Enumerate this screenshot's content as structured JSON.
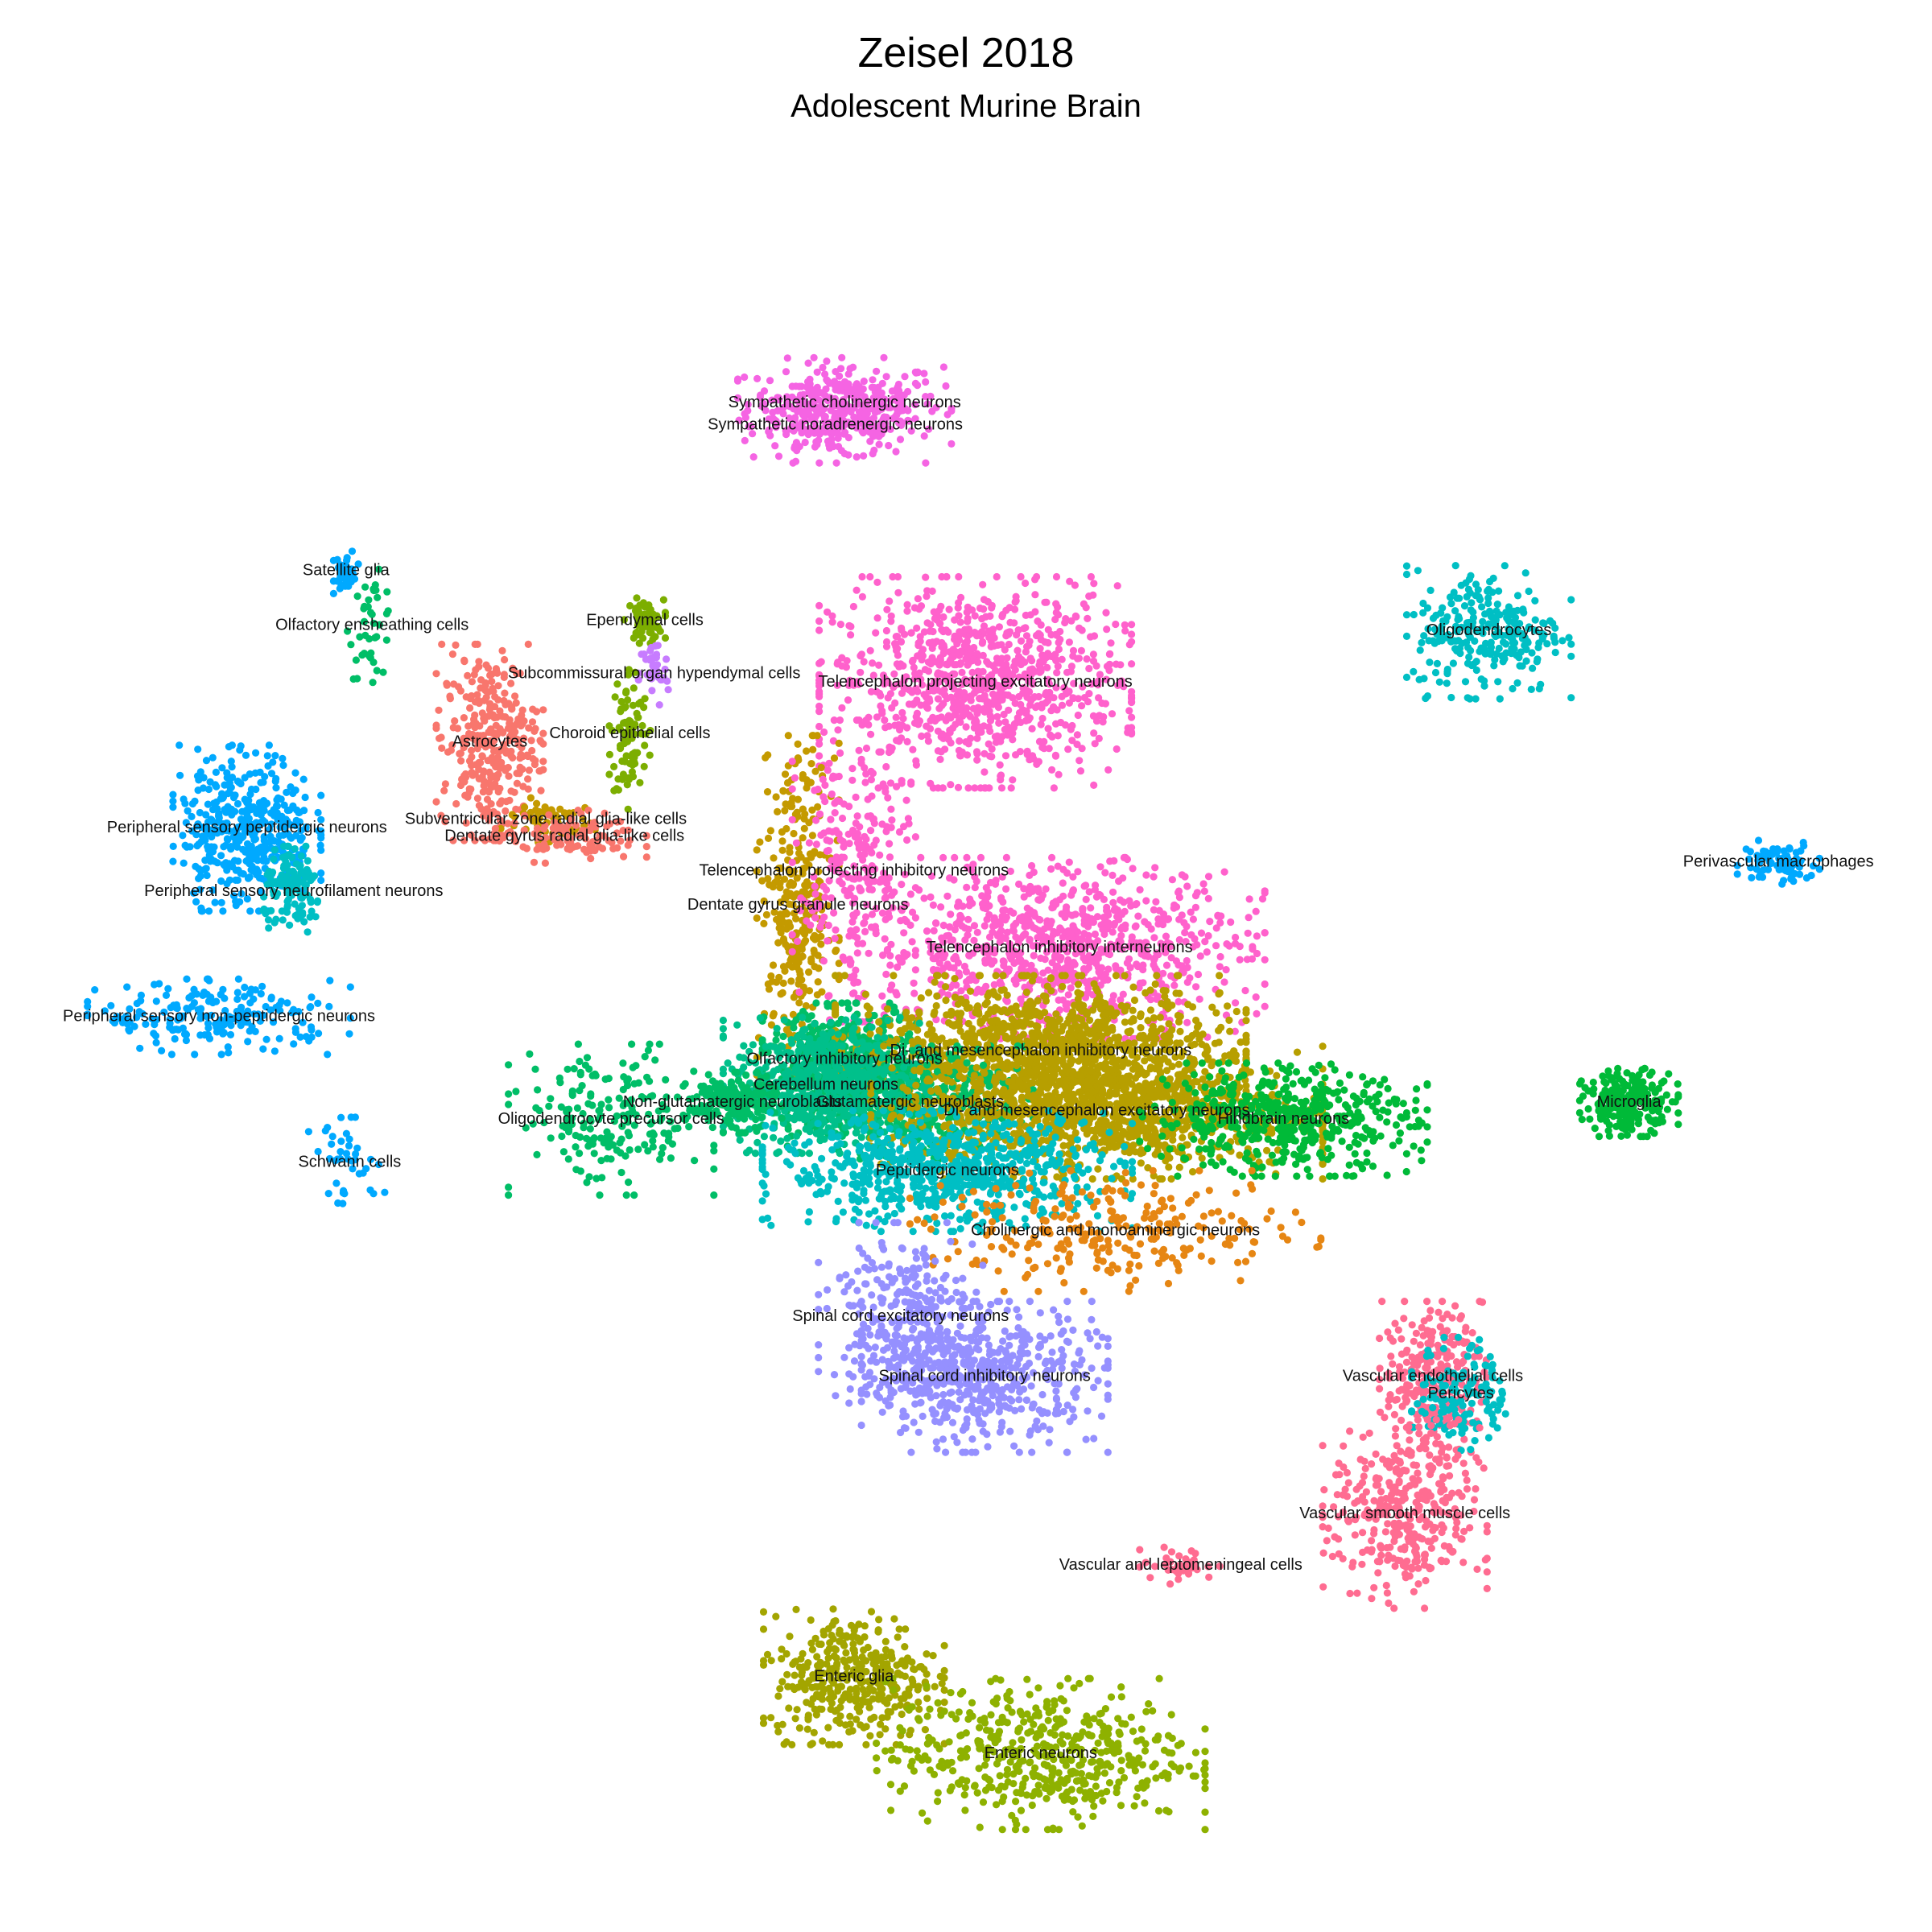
{
  "chart_data": {
    "type": "scatter",
    "title": "Zeisel 2018",
    "subtitle": "Adolescent Murine Brain",
    "xlabel": "",
    "ylabel": "",
    "grid": false,
    "legend": "none",
    "xlim": [
      0,
      100
    ],
    "ylim": [
      0,
      100
    ],
    "series": [
      {
        "name": "Sympathetic cholinergic neurons",
        "color": "#F564E3",
        "x": 43.5,
        "y": 87.3,
        "sx": 2.6,
        "sy": 1.2,
        "n": 260
      },
      {
        "name": "Sympathetic noradrenergic neurons",
        "color": "#F564E3",
        "x": 43.0,
        "y": 86.0,
        "sx": 2.2,
        "sy": 1.0,
        "n": 180
      },
      {
        "name": "Satellite glia",
        "color": "#00A9FF",
        "x": 16.8,
        "y": 77.5,
        "sx": 0.3,
        "sy": 0.6,
        "n": 40
      },
      {
        "name": "Olfactory ensheathing cells",
        "color": "#00BE67",
        "x": 18.2,
        "y": 74.3,
        "sx": 0.6,
        "sy": 1.5,
        "n": 40
      },
      {
        "name": "Ependymal cells",
        "color": "#7CAE00",
        "x": 32.8,
        "y": 74.6,
        "sx": 0.5,
        "sy": 0.6,
        "n": 60
      },
      {
        "name": "Subcommissural organ hypendymal cells",
        "color": "#C77CFF",
        "x": 33.3,
        "y": 71.5,
        "sx": 0.4,
        "sy": 1.0,
        "n": 40
      },
      {
        "name": "Choroid epithelial cells",
        "color": "#7CAE00",
        "x": 32.0,
        "y": 68.0,
        "sx": 0.5,
        "sy": 2.0,
        "n": 90
      },
      {
        "name": "Telencephalon projecting excitatory neurons",
        "color": "#FF61CC",
        "x": 50.5,
        "y": 71.0,
        "sx": 3.8,
        "sy": 2.8,
        "n": 900
      },
      {
        "name": "Oligodendrocytes",
        "color": "#00BFC4",
        "x": 78.0,
        "y": 74.0,
        "sx": 2.0,
        "sy": 1.8,
        "n": 260
      },
      {
        "name": "Astrocytes",
        "color": "#F8766D",
        "x": 24.5,
        "y": 67.5,
        "sx": 1.3,
        "sy": 2.6,
        "n": 320
      },
      {
        "name": "Subventricular zone radial glia-like cells",
        "color": "#C49A00",
        "x": 27.5,
        "y": 63.0,
        "sx": 1.2,
        "sy": 0.6,
        "n": 60
      },
      {
        "name": "Dentate gyrus radial glia-like cells",
        "color": "#F8766D",
        "x": 28.5,
        "y": 62.0,
        "sx": 2.0,
        "sy": 0.7,
        "n": 120
      },
      {
        "name": "Peripheral sensory peptidergic neurons",
        "color": "#00A9FF",
        "x": 11.5,
        "y": 62.5,
        "sx": 1.8,
        "sy": 2.2,
        "n": 420
      },
      {
        "name": "Peripheral sensory neurofilament neurons",
        "color": "#00BFC4",
        "x": 14.0,
        "y": 58.8,
        "sx": 0.8,
        "sy": 1.2,
        "n": 120
      },
      {
        "name": "Perivascular macrophages",
        "color": "#00A9FF",
        "x": 93.5,
        "y": 60.5,
        "sx": 1.0,
        "sy": 0.6,
        "n": 80
      },
      {
        "name": "Dentate gyrus granule neurons",
        "color": "#C49A00",
        "x": 41.0,
        "y": 58.0,
        "sx": 1.0,
        "sy": 4.5,
        "n": 320
      },
      {
        "name": "Telencephalon projecting inhibitory neurons",
        "color": "#FF61CC",
        "x": 44.0,
        "y": 60.0,
        "sx": 1.5,
        "sy": 4.0,
        "n": 260
      },
      {
        "name": "Telencephalon inhibitory interneurons",
        "color": "#FF61CC",
        "x": 55.0,
        "y": 55.5,
        "sx": 5.0,
        "sy": 2.4,
        "n": 900
      },
      {
        "name": "Peripheral sensory non-peptidergic neurons",
        "color": "#00A9FF",
        "x": 10.0,
        "y": 51.5,
        "sx": 3.2,
        "sy": 1.0,
        "n": 200
      },
      {
        "name": "Olfactory inhibitory neurons",
        "color": "#00BE67",
        "x": 43.5,
        "y": 49.0,
        "sx": 2.0,
        "sy": 1.5,
        "n": 400
      },
      {
        "name": "Di- and mesencephalon inhibitory neurons",
        "color": "#B79F00",
        "x": 54.0,
        "y": 49.5,
        "sx": 5.0,
        "sy": 2.0,
        "n": 1100
      },
      {
        "name": "Glutamatergic neuroblasts",
        "color": "#00BE67",
        "x": 47.0,
        "y": 46.5,
        "sx": 3.0,
        "sy": 1.5,
        "n": 500
      },
      {
        "name": "Cerebellum neurons",
        "color": "#00C08B",
        "x": 42.5,
        "y": 47.5,
        "sx": 2.5,
        "sy": 1.8,
        "n": 600
      },
      {
        "name": "Di- and mesencephalon excitatory neurons",
        "color": "#B79F00",
        "x": 57.0,
        "y": 46.0,
        "sx": 5.5,
        "sy": 1.8,
        "n": 1100
      },
      {
        "name": "Oligodendrocyte precursor cells",
        "color": "#00BE67",
        "x": 31.0,
        "y": 45.5,
        "sx": 2.5,
        "sy": 2.0,
        "n": 200
      },
      {
        "name": "Non-glutamatergic neuroblasts",
        "color": "#00BE67",
        "x": 37.5,
        "y": 46.5,
        "sx": 1.2,
        "sy": 0.8,
        "n": 200
      },
      {
        "name": "Microglia",
        "color": "#00BA38",
        "x": 85.5,
        "y": 46.5,
        "sx": 1.2,
        "sy": 0.9,
        "n": 220
      },
      {
        "name": "Hindbrain neurons",
        "color": "#00BA38",
        "x": 67.0,
        "y": 45.5,
        "sx": 3.5,
        "sy": 1.5,
        "n": 500
      },
      {
        "name": "Peptidergic neurons",
        "color": "#00BFC4",
        "x": 49.0,
        "y": 42.5,
        "sx": 4.5,
        "sy": 1.6,
        "n": 700
      },
      {
        "name": "Schwann cells",
        "color": "#00A9FF",
        "x": 17.0,
        "y": 43.0,
        "sx": 1.0,
        "sy": 1.2,
        "n": 40
      },
      {
        "name": "Cholinergic and monoaminergic neurons",
        "color": "#E68613",
        "x": 58.0,
        "y": 39.0,
        "sx": 5.0,
        "sy": 1.6,
        "n": 260
      },
      {
        "name": "Spinal cord excitatory neurons",
        "color": "#9590FF",
        "x": 46.5,
        "y": 34.0,
        "sx": 2.0,
        "sy": 2.5,
        "n": 300
      },
      {
        "name": "Spinal cord inhibitory neurons",
        "color": "#9590FF",
        "x": 51.0,
        "y": 30.5,
        "sx": 3.0,
        "sy": 2.0,
        "n": 500
      },
      {
        "name": "Vascular endothelial cells",
        "color": "#FF6C91",
        "x": 75.0,
        "y": 30.5,
        "sx": 1.3,
        "sy": 2.0,
        "n": 260
      },
      {
        "name": "Pericytes",
        "color": "#00BFC4",
        "x": 76.5,
        "y": 29.5,
        "sx": 1.2,
        "sy": 1.5,
        "n": 140
      },
      {
        "name": "Vascular smooth muscle cells",
        "color": "#FF6C91",
        "x": 73.5,
        "y": 22.5,
        "sx": 2.0,
        "sy": 2.5,
        "n": 360
      },
      {
        "name": "Vascular and leptomeningeal cells",
        "color": "#FF6C91",
        "x": 61.5,
        "y": 19.5,
        "sx": 1.0,
        "sy": 0.5,
        "n": 40
      },
      {
        "name": "Enteric glia",
        "color": "#A3A500",
        "x": 44.0,
        "y": 13.0,
        "sx": 2.2,
        "sy": 1.8,
        "n": 380
      },
      {
        "name": "Enteric neurons",
        "color": "#8EB100",
        "x": 54.0,
        "y": 8.5,
        "sx": 4.0,
        "sy": 2.0,
        "n": 500
      }
    ]
  }
}
